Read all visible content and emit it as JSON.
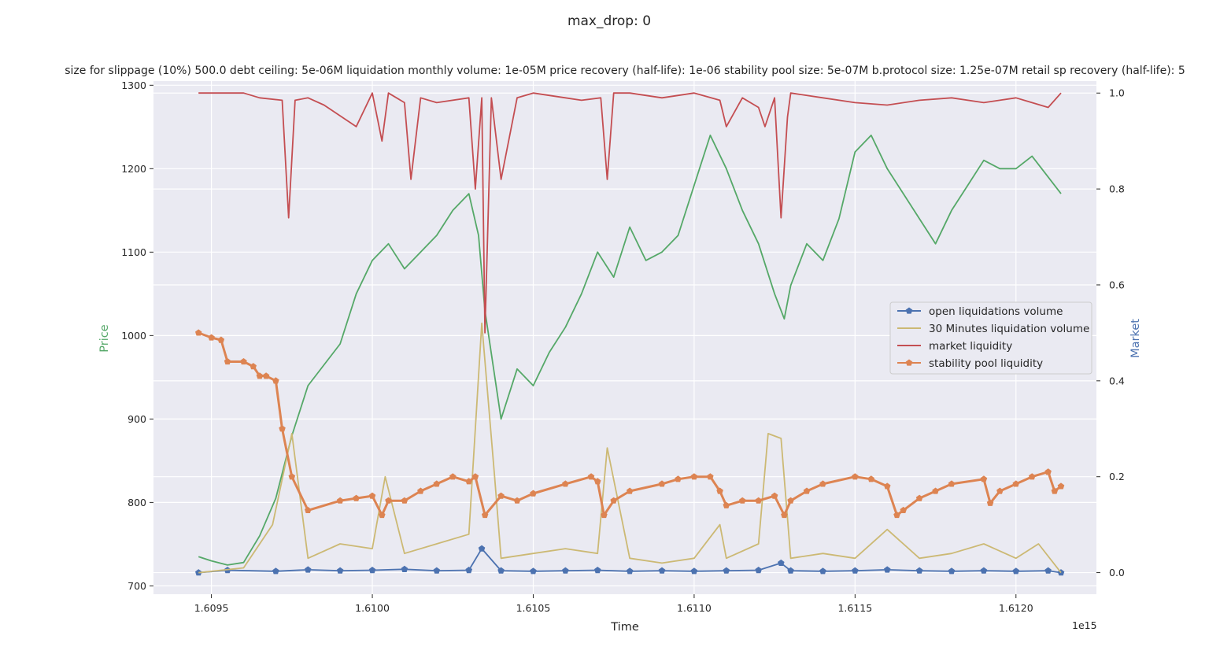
{
  "chart_data": {
    "type": "line",
    "suptitle": "max_drop: 0",
    "title": "size for slippage (10%) 500.0 debt ceiling: 5e-06M liquidation monthly volume: 1e-05M price recovery (half-life): 1e-06 stability pool size: 5e-07M b.protocol size: 1.25e-07M retail sp recovery (half-life): 5",
    "xlabel": "Time",
    "x_offset_label": "1e15",
    "ylabel_left": "Price",
    "ylabel_right": "Market",
    "colors": {
      "price": "#55a868",
      "open": "#4c72b0",
      "thirty": "#ccb974",
      "market": "#c44e52",
      "stability": "#dd8452",
      "background": "#eaeaf2",
      "grid": "#ffffff"
    },
    "x_range": [
      1.60932,
      1.61225
    ],
    "x_ticks": [
      1.6095,
      1.61,
      1.6105,
      1.611,
      1.6115,
      1.612
    ],
    "x_tick_labels": [
      "1.6095",
      "1.6100",
      "1.6105",
      "1.6110",
      "1.6115",
      "1.6120"
    ],
    "y_left_range": [
      690,
      1305
    ],
    "y_left_ticks": [
      700,
      800,
      900,
      1000,
      1100,
      1200,
      1300
    ],
    "y_right_range": [
      -0.045,
      1.025
    ],
    "y_right_ticks": [
      0.0,
      0.2,
      0.4,
      0.6,
      0.8,
      1.0
    ],
    "y_right_tick_labels": [
      "0.0",
      "0.2",
      "0.4",
      "0.6",
      "0.8",
      "1.0"
    ],
    "legend": {
      "placement": "center-right",
      "entries": [
        {
          "label": "open liquidations volume",
          "key": "open",
          "marker": "pentagon"
        },
        {
          "label": "30 Minutes liquidation volume",
          "key": "thirty",
          "marker": "none"
        },
        {
          "label": "market liquidity",
          "key": "market",
          "marker": "none"
        },
        {
          "label": "stability pool liquidity",
          "key": "stability",
          "marker": "pentagon"
        }
      ]
    },
    "series": [
      {
        "key": "price",
        "axis": "left",
        "x": [
          1.60946,
          1.6095,
          1.60955,
          1.6096,
          1.60965,
          1.6097,
          1.60975,
          1.6098,
          1.60985,
          1.6099,
          1.60995,
          1.61,
          1.61005,
          1.6101,
          1.61015,
          1.6102,
          1.61025,
          1.6103,
          1.61033,
          1.61035,
          1.6104,
          1.61045,
          1.6105,
          1.61055,
          1.6106,
          1.61065,
          1.6107,
          1.61075,
          1.6108,
          1.61085,
          1.6109,
          1.61095,
          1.611,
          1.61105,
          1.6111,
          1.61115,
          1.6112,
          1.61125,
          1.61128,
          1.6113,
          1.61135,
          1.6114,
          1.61145,
          1.6115,
          1.61155,
          1.6116,
          1.61165,
          1.6117,
          1.61175,
          1.6118,
          1.61185,
          1.6119,
          1.61195,
          1.612,
          1.61205,
          1.6121,
          1.61214
        ],
        "y": [
          735,
          730,
          725,
          728,
          760,
          805,
          880,
          940,
          965,
          990,
          1050,
          1090,
          1110,
          1080,
          1100,
          1120,
          1150,
          1170,
          1120,
          1030,
          900,
          960,
          940,
          980,
          1010,
          1050,
          1100,
          1070,
          1130,
          1090,
          1100,
          1120,
          1180,
          1240,
          1200,
          1150,
          1110,
          1050,
          1020,
          1060,
          1110,
          1090,
          1140,
          1220,
          1240,
          1200,
          1170,
          1140,
          1110,
          1150,
          1180,
          1210,
          1200,
          1200,
          1215,
          1190,
          1170
        ]
      },
      {
        "key": "market",
        "axis": "right",
        "x": [
          1.60946,
          1.6096,
          1.60965,
          1.60972,
          1.60974,
          1.60976,
          1.6098,
          1.60985,
          1.60995,
          1.61,
          1.61003,
          1.61005,
          1.6101,
          1.61012,
          1.61015,
          1.6102,
          1.6103,
          1.61032,
          1.61034,
          1.61035,
          1.61037,
          1.6104,
          1.61045,
          1.6105,
          1.6106,
          1.61065,
          1.61071,
          1.61073,
          1.61075,
          1.6108,
          1.6109,
          1.611,
          1.61108,
          1.6111,
          1.61115,
          1.6112,
          1.61122,
          1.61125,
          1.61127,
          1.61129,
          1.6113,
          1.6114,
          1.6115,
          1.6116,
          1.6117,
          1.6118,
          1.6119,
          1.612,
          1.6121,
          1.61214
        ],
        "y": [
          1.0,
          1.0,
          0.99,
          0.985,
          0.74,
          0.985,
          0.99,
          0.975,
          0.93,
          1.0,
          0.9,
          1.0,
          0.98,
          0.82,
          0.99,
          0.98,
          0.99,
          0.8,
          0.99,
          0.5,
          0.99,
          0.82,
          0.99,
          1.0,
          0.99,
          0.985,
          0.99,
          0.82,
          1.0,
          1.0,
          0.99,
          1.0,
          0.985,
          0.93,
          0.99,
          0.97,
          0.93,
          0.99,
          0.74,
          0.95,
          1.0,
          0.99,
          0.98,
          0.975,
          0.985,
          0.99,
          0.98,
          0.99,
          0.97,
          1.0
        ]
      },
      {
        "key": "stability",
        "axis": "right",
        "x": [
          1.60946,
          1.6095,
          1.60953,
          1.60955,
          1.6096,
          1.60963,
          1.60965,
          1.60967,
          1.6097,
          1.60972,
          1.60975,
          1.6098,
          1.6099,
          1.60995,
          1.61,
          1.61003,
          1.61005,
          1.6101,
          1.61015,
          1.6102,
          1.61025,
          1.6103,
          1.61032,
          1.61035,
          1.6104,
          1.61045,
          1.6105,
          1.6106,
          1.61068,
          1.6107,
          1.61072,
          1.61075,
          1.6108,
          1.6109,
          1.61095,
          1.611,
          1.61105,
          1.61108,
          1.6111,
          1.61115,
          1.6112,
          1.61125,
          1.61128,
          1.6113,
          1.61135,
          1.6114,
          1.6115,
          1.61155,
          1.6116,
          1.61163,
          1.61165,
          1.6117,
          1.61175,
          1.6118,
          1.6119,
          1.61192,
          1.61195,
          1.612,
          1.61205,
          1.6121,
          1.61212,
          1.61214
        ],
        "y": [
          0.5,
          0.49,
          0.485,
          0.44,
          0.44,
          0.43,
          0.41,
          0.41,
          0.4,
          0.3,
          0.2,
          0.13,
          0.15,
          0.155,
          0.16,
          0.12,
          0.15,
          0.15,
          0.17,
          0.185,
          0.2,
          0.19,
          0.2,
          0.12,
          0.16,
          0.15,
          0.165,
          0.185,
          0.2,
          0.19,
          0.12,
          0.15,
          0.17,
          0.185,
          0.195,
          0.2,
          0.2,
          0.17,
          0.14,
          0.15,
          0.15,
          0.16,
          0.12,
          0.15,
          0.17,
          0.185,
          0.2,
          0.195,
          0.18,
          0.12,
          0.13,
          0.155,
          0.17,
          0.185,
          0.195,
          0.145,
          0.17,
          0.185,
          0.2,
          0.21,
          0.17,
          0.18
        ]
      },
      {
        "key": "open",
        "axis": "right",
        "x": [
          1.60946,
          1.60955,
          1.6097,
          1.6098,
          1.6099,
          1.61,
          1.6101,
          1.6102,
          1.6103,
          1.61034,
          1.6104,
          1.6105,
          1.6106,
          1.6107,
          1.6108,
          1.6109,
          1.611,
          1.6111,
          1.6112,
          1.61127,
          1.6113,
          1.6114,
          1.6115,
          1.6116,
          1.6117,
          1.6118,
          1.6119,
          1.612,
          1.6121,
          1.61214
        ],
        "y": [
          0.0,
          0.005,
          0.003,
          0.006,
          0.004,
          0.005,
          0.007,
          0.004,
          0.005,
          0.05,
          0.004,
          0.003,
          0.004,
          0.005,
          0.003,
          0.004,
          0.003,
          0.004,
          0.005,
          0.02,
          0.004,
          0.003,
          0.004,
          0.006,
          0.004,
          0.003,
          0.004,
          0.003,
          0.004,
          0.0
        ]
      },
      {
        "key": "thirty",
        "axis": "right",
        "x": [
          1.60946,
          1.6096,
          1.60969,
          1.60975,
          1.6098,
          1.6099,
          1.61,
          1.61004,
          1.6101,
          1.6102,
          1.6103,
          1.61034,
          1.61038,
          1.6104,
          1.6105,
          1.6106,
          1.6107,
          1.61073,
          1.6108,
          1.6109,
          1.611,
          1.61108,
          1.6111,
          1.6112,
          1.61123,
          1.61127,
          1.6113,
          1.6114,
          1.6115,
          1.6116,
          1.6117,
          1.6118,
          1.6119,
          1.612,
          1.61207,
          1.61214
        ],
        "y": [
          0.0,
          0.01,
          0.1,
          0.29,
          0.03,
          0.06,
          0.05,
          0.2,
          0.04,
          0.06,
          0.08,
          0.52,
          0.2,
          0.03,
          0.04,
          0.05,
          0.04,
          0.26,
          0.03,
          0.02,
          0.03,
          0.1,
          0.03,
          0.06,
          0.29,
          0.28,
          0.03,
          0.04,
          0.03,
          0.09,
          0.03,
          0.04,
          0.06,
          0.03,
          0.06,
          0.0
        ]
      }
    ]
  }
}
